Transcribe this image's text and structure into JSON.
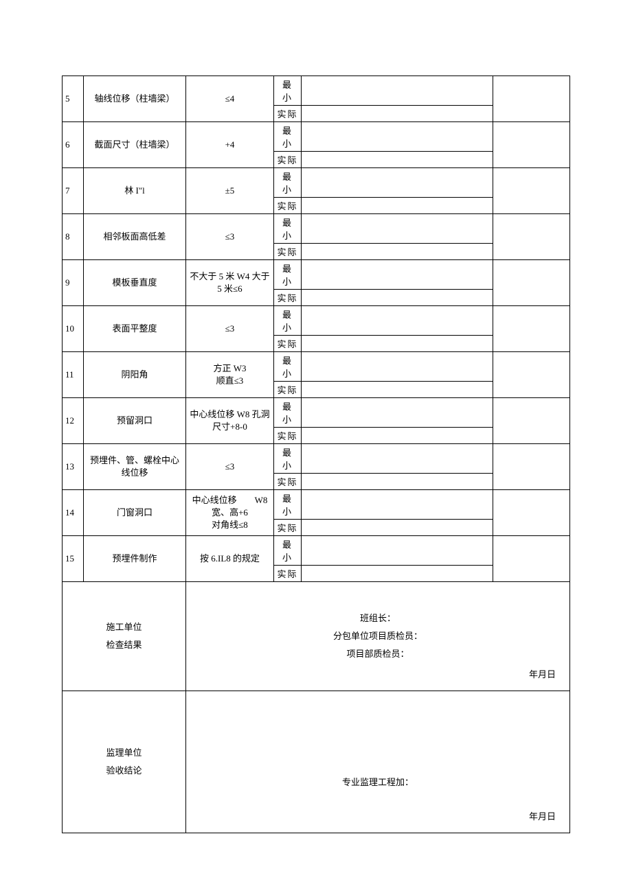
{
  "labels": {
    "min": "最 小",
    "actual": "实际"
  },
  "rows": [
    {
      "num": "5",
      "name": "轴线位移（柱墙梁）",
      "std": "≤4"
    },
    {
      "num": "6",
      "name": "截面尺寸（柱墙梁）",
      "std": "+4"
    },
    {
      "num": "7",
      "name": "林 I\"l",
      "std": "±5"
    },
    {
      "num": "8",
      "name": "相邻板面高低差",
      "std": "≤3"
    },
    {
      "num": "9",
      "name": "模板垂直度",
      "std": "不大于 5 米 W4 大于 5 米≤6"
    },
    {
      "num": "10",
      "name": "表面平整度",
      "std": "≤3"
    },
    {
      "num": "11",
      "name": "阴阳角",
      "std": "方正 W3\n顺直≤3"
    },
    {
      "num": "12",
      "name": "预留洞口",
      "std": "中心线位移 W8 孔洞尺寸+8-0"
    },
    {
      "num": "13",
      "name": "预埋件、管、螺栓中心线位移",
      "std": "≤3"
    },
    {
      "num": "14",
      "name": "门窗洞口",
      "std": "中心线位移　　W8\n宽、高+6\n对角线≤8"
    },
    {
      "num": "15",
      "name": "预埋件制作",
      "std": "按 6.IL8 的规定"
    }
  ],
  "footer": {
    "constructionLabel1": "施工单位",
    "constructionLabel2": "检查结果",
    "constructionLines": [
      "班组长：",
      "分包单位项目质检员：",
      "项目部质检员："
    ],
    "date": "年月日",
    "supervisionLabel1": "监理单位",
    "supervisionLabel2": "验收结论",
    "supervisionLine": "专业监理工程加："
  }
}
